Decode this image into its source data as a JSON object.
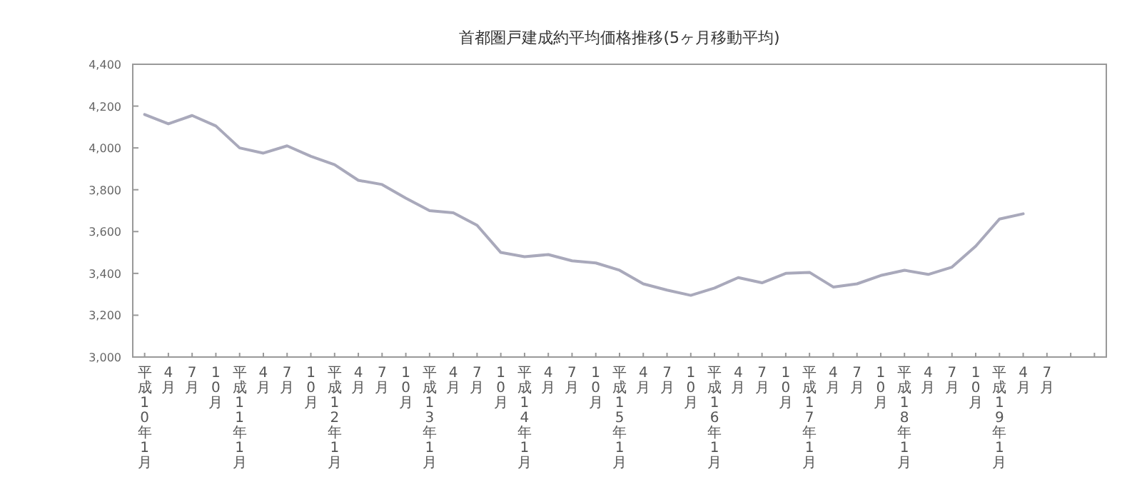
{
  "chart_data": {
    "type": "line",
    "title": "首都圏戸建成約平均価格推移(5ヶ月移動平均)",
    "categories": [
      "平成10年1月",
      "4月",
      "7月",
      "10月",
      "平成11年1月",
      "4月",
      "7月",
      "10月",
      "平成12年1月",
      "4月",
      "7月",
      "10月",
      "平成13年1月",
      "4月",
      "7月",
      "10月",
      "平成14年1月",
      "4月",
      "7月",
      "10月",
      "平成15年1月",
      "4月",
      "7月",
      "10月",
      "平成16年1月",
      "4月",
      "7月",
      "10月",
      "平成17年1月",
      "4月",
      "7月",
      "10月",
      "平成18年1月",
      "4月",
      "7月",
      "10月",
      "平成19年1月",
      "4月",
      "7月",
      null,
      null
    ],
    "series": [
      {
        "color": "#a9a9bb",
        "values": [
          4160,
          4115,
          4155,
          4105,
          4000,
          3975,
          4010,
          3960,
          3920,
          3845,
          3825,
          3760,
          3700,
          3690,
          3630,
          3500,
          3480,
          3490,
          3460,
          3450,
          3415,
          3350,
          3320,
          3295,
          3330,
          3380,
          3355,
          3400,
          3405,
          3335,
          3350,
          3390,
          3415,
          3395,
          3430,
          3530,
          3660,
          3685,
          null,
          null,
          null
        ]
      }
    ],
    "ylim": [
      3000,
      4400
    ],
    "yticks": [
      {
        "value": 3000,
        "label": "3,000"
      },
      {
        "value": 3200,
        "label": "3,200"
      },
      {
        "value": 3400,
        "label": "3,400"
      },
      {
        "value": 3600,
        "label": "3,600"
      },
      {
        "value": 3800,
        "label": "3,800"
      },
      {
        "value": 4000,
        "label": "4,000"
      },
      {
        "value": 4200,
        "label": "4,200"
      },
      {
        "value": 4400,
        "label": "4,400"
      }
    ],
    "grid": false,
    "marker": "none",
    "line_style": "solid"
  }
}
